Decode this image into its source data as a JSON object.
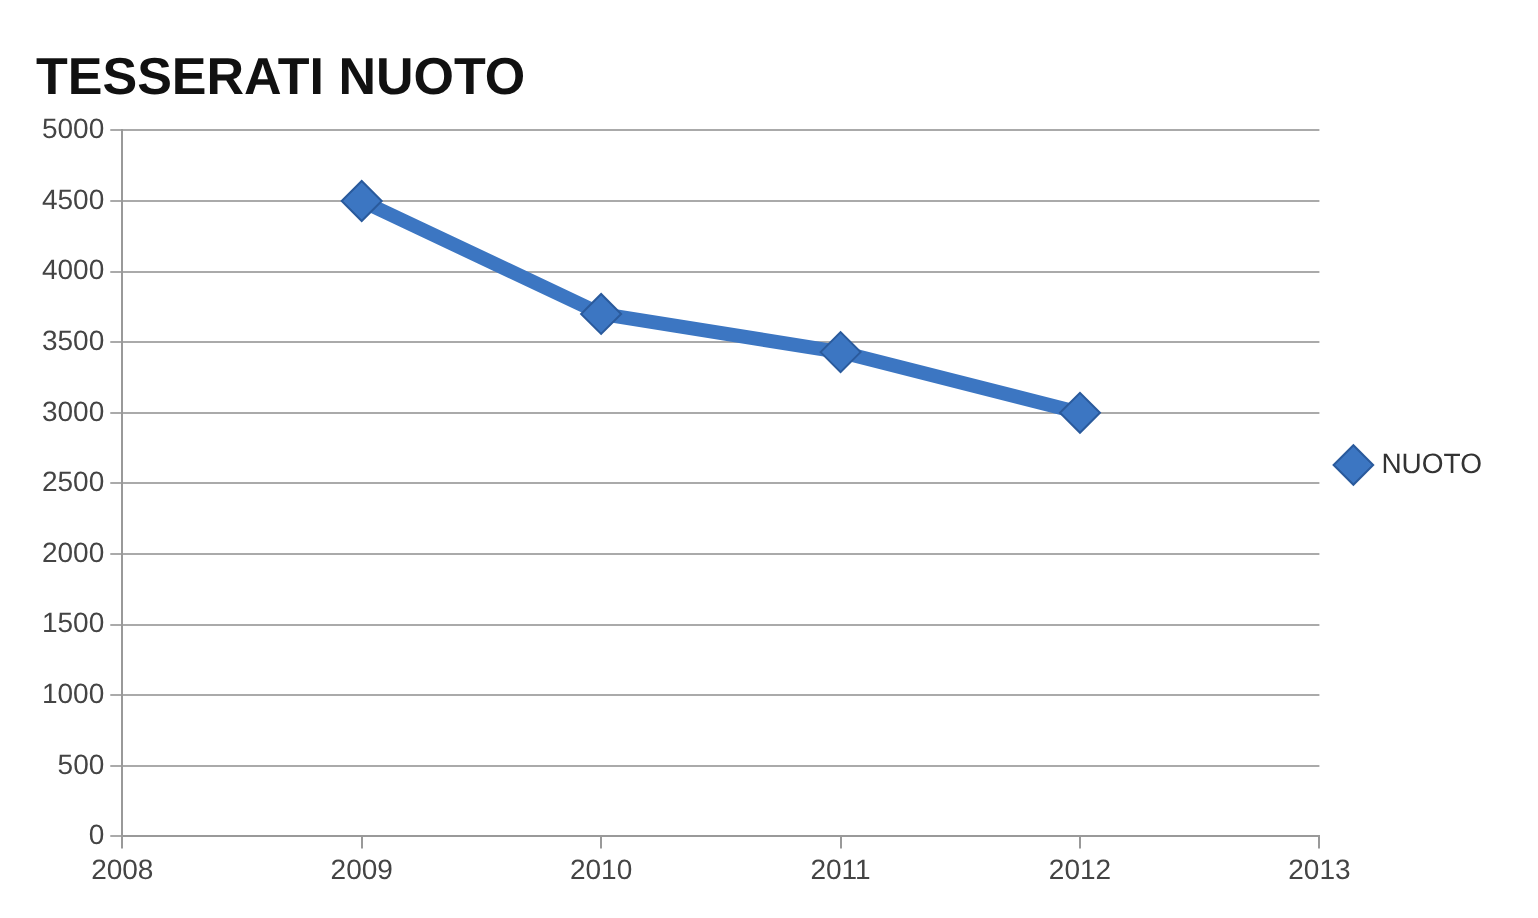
{
  "chart_data": {
    "type": "line",
    "title": "TESSERATI NUOTO",
    "x": [
      2009,
      2010,
      2011,
      2012
    ],
    "series": [
      {
        "name": "NUOTO",
        "color": "#3c76c2",
        "values": [
          4500,
          3700,
          3430,
          3000
        ]
      }
    ],
    "xlim": [
      2008,
      2013
    ],
    "xticks": [
      2008,
      2009,
      2010,
      2011,
      2012,
      2013
    ],
    "ylim": [
      0,
      5000
    ],
    "yticks": [
      0,
      500,
      1000,
      1500,
      2000,
      2500,
      3000,
      3500,
      4000,
      4500,
      5000
    ],
    "grid": "y",
    "legend": "right",
    "marker": "diamond",
    "line_style": "solid"
  }
}
